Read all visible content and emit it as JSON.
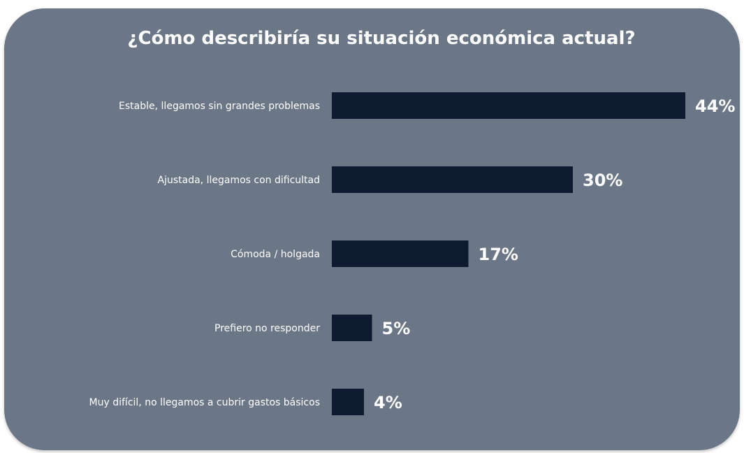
{
  "colors": {
    "panel_bg": "#6b7687",
    "bar": "#0d1a30",
    "label_text": "#ffffff",
    "title_text": "#ffffff"
  },
  "chart_data": {
    "type": "bar",
    "orientation": "horizontal",
    "title": "¿Cómo describiría su situación económica actual?",
    "categories": [
      "Estable, llegamos sin grandes problemas",
      "Ajustada, llegamos con dificultad",
      "Cómoda / holgada",
      "Prefiero no responder",
      "Muy difícil, no llegamos a cubrir gastos básicos"
    ],
    "values": [
      44,
      30,
      17,
      5,
      4
    ],
    "value_labels": [
      "44%",
      "30%",
      "17%",
      "5%",
      "4%"
    ],
    "unit": "%",
    "grid": false,
    "legend": "none"
  }
}
